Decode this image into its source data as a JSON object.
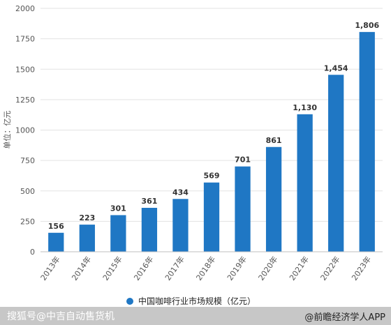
{
  "chart_data": {
    "type": "bar",
    "ylabel": "单位：亿元",
    "categories": [
      "2013年",
      "2014年",
      "2015年",
      "2016年",
      "2017年",
      "2018年",
      "2019年",
      "2020年",
      "2021年",
      "2022年",
      "2023年"
    ],
    "series": [
      {
        "name": "中国咖啡行业市场规模（亿元）",
        "values": [
          156,
          223,
          301,
          361,
          434,
          569,
          701,
          861,
          1130,
          1454,
          1806
        ],
        "labels": [
          "156",
          "223",
          "301",
          "361",
          "434",
          "569",
          "701",
          "861",
          "1,130",
          "1,454",
          "1,806"
        ]
      }
    ],
    "ylim": [
      0,
      2000
    ],
    "yticks": [
      0,
      250,
      500,
      750,
      1000,
      1250,
      1500,
      1750,
      2000
    ],
    "grid": true,
    "legend_position": "bottom",
    "bar_color": "#1f77c4"
  },
  "watermark": {
    "left_text": "搜狐号@中吉自动售货机",
    "right_text": "@前瞻经济学人APP"
  }
}
